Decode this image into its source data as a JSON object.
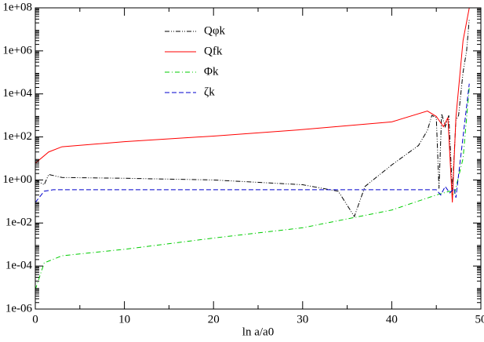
{
  "chart_data": {
    "type": "line",
    "x_label": "ln a/a0",
    "log_y": true,
    "legend": "top-left",
    "xlim": [
      0,
      50
    ],
    "xticks": [
      0,
      10,
      20,
      30,
      40,
      50
    ],
    "ylim": [
      1e-06,
      100000000.0
    ],
    "yticks": [
      {
        "value": 1e-06,
        "label": "1e-06"
      },
      {
        "value": 0.0001,
        "label": "1e-04"
      },
      {
        "value": 0.01,
        "label": "1e-02"
      },
      {
        "value": 1,
        "label": "1e+00"
      },
      {
        "value": 100,
        "label": "1e+02"
      },
      {
        "value": 10000,
        "label": "1e+04"
      },
      {
        "value": 1000000,
        "label": "1e+06"
      },
      {
        "value": 100000000,
        "label": "1e+08"
      }
    ],
    "series": [
      {
        "name": "Qφk",
        "color": "#000000",
        "dash": "dashdot",
        "x": [
          0,
          1,
          1.5,
          3,
          10,
          20,
          30,
          34,
          35.8,
          37,
          40,
          43,
          44,
          44.5,
          45,
          45.3,
          45.6,
          46,
          46.4,
          46.8,
          47.2,
          47.5,
          48,
          48.4,
          48.7
        ],
        "values": [
          1,
          0.6,
          1.8,
          1.3,
          1.2,
          1,
          0.6,
          0.3,
          0.02,
          0.5,
          5,
          40,
          200,
          1000,
          800,
          0.4,
          1200,
          300,
          1000,
          0.3,
          600,
          1000,
          100000,
          1000000,
          30000000
        ]
      },
      {
        "name": "Qfk",
        "color": "#ff0000",
        "dash": "solid",
        "x": [
          0,
          1.5,
          3,
          10,
          20,
          30,
          40,
          44,
          45,
          45.8,
          46.3,
          46.8,
          47.2,
          48,
          48.7
        ],
        "values": [
          6,
          20,
          35,
          60,
          110,
          220,
          500,
          1600,
          900,
          300,
          800,
          0.09,
          800,
          3000000,
          100000000
        ]
      },
      {
        "name": "Φk",
        "color": "#00cc00",
        "dash": "dashdot2",
        "x": [
          0,
          1,
          3,
          10,
          20,
          30,
          40,
          45,
          46.5,
          47,
          48,
          48.7
        ],
        "values": [
          8e-06,
          0.00014,
          0.0003,
          0.0006,
          0.002,
          0.006,
          0.04,
          0.2,
          0.3,
          0.2,
          10,
          20000
        ]
      },
      {
        "name": "ζk",
        "color": "#0000cc",
        "dash": "dash",
        "x": [
          0,
          1,
          2,
          10,
          20,
          30,
          40,
          45,
          45.5,
          46,
          46.5,
          47,
          47.2,
          48,
          48.7
        ],
        "values": [
          0.09,
          0.3,
          0.35,
          0.35,
          0.35,
          0.35,
          0.35,
          0.35,
          0.2,
          0.5,
          0.25,
          0.4,
          0.15,
          100,
          30000
        ]
      }
    ]
  }
}
